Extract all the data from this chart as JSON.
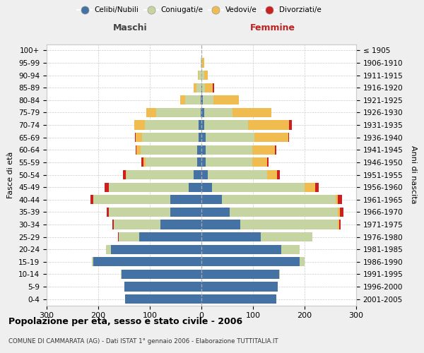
{
  "age_groups": [
    "0-4",
    "5-9",
    "10-14",
    "15-19",
    "20-24",
    "25-29",
    "30-34",
    "35-39",
    "40-44",
    "45-49",
    "50-54",
    "55-59",
    "60-64",
    "65-69",
    "70-74",
    "75-79",
    "80-84",
    "85-89",
    "90-94",
    "95-99",
    "100+"
  ],
  "birth_years": [
    "2001-2005",
    "1996-2000",
    "1991-1995",
    "1986-1990",
    "1981-1985",
    "1976-1980",
    "1971-1975",
    "1966-1970",
    "1961-1965",
    "1956-1960",
    "1951-1955",
    "1946-1950",
    "1941-1945",
    "1936-1940",
    "1931-1935",
    "1926-1930",
    "1921-1925",
    "1916-1920",
    "1911-1915",
    "1906-1910",
    "≤ 1905"
  ],
  "males": {
    "celibi": [
      148,
      150,
      155,
      210,
      175,
      120,
      80,
      60,
      60,
      25,
      15,
      8,
      8,
      5,
      5,
      2,
      1,
      0,
      0,
      0,
      0
    ],
    "coniugati": [
      0,
      0,
      1,
      3,
      10,
      40,
      90,
      120,
      150,
      155,
      130,
      100,
      110,
      110,
      105,
      85,
      30,
      10,
      5,
      2,
      0
    ],
    "vedovi": [
      0,
      0,
      0,
      0,
      0,
      0,
      0,
      0,
      0,
      0,
      2,
      5,
      8,
      12,
      20,
      20,
      10,
      5,
      2,
      0,
      0
    ],
    "divorziati": [
      0,
      0,
      0,
      0,
      0,
      2,
      3,
      3,
      5,
      8,
      5,
      3,
      2,
      2,
      0,
      0,
      0,
      0,
      0,
      0,
      0
    ]
  },
  "females": {
    "nubili": [
      145,
      148,
      150,
      190,
      155,
      115,
      75,
      55,
      40,
      20,
      12,
      8,
      8,
      8,
      5,
      5,
      3,
      2,
      0,
      0,
      0
    ],
    "coniugate": [
      0,
      0,
      2,
      10,
      35,
      100,
      190,
      210,
      220,
      180,
      115,
      90,
      90,
      95,
      85,
      55,
      20,
      5,
      5,
      2,
      0
    ],
    "vedove": [
      0,
      0,
      0,
      0,
      0,
      0,
      2,
      3,
      5,
      20,
      20,
      30,
      45,
      65,
      80,
      75,
      50,
      15,
      8,
      3,
      0
    ],
    "divorziate": [
      0,
      0,
      0,
      0,
      0,
      0,
      3,
      8,
      8,
      8,
      5,
      2,
      2,
      2,
      5,
      0,
      0,
      2,
      0,
      0,
      0
    ]
  },
  "colors": {
    "celibi": "#4472a4",
    "coniugati": "#c5d4a0",
    "vedovi": "#f0bc50",
    "divorziati": "#cc2020"
  },
  "xlim": [
    -300,
    300
  ],
  "xticks": [
    -300,
    -200,
    -100,
    0,
    100,
    200,
    300
  ],
  "xticklabels": [
    "300",
    "200",
    "100",
    "0",
    "100",
    "200",
    "300"
  ],
  "title": "Popolazione per età, sesso e stato civile - 2006",
  "subtitle": "COMUNE DI CAMMARATA (AG) - Dati ISTAT 1° gennaio 2006 - Elaborazione TUTTITALIA.IT",
  "ylabel_left": "Fasce di età",
  "ylabel_right": "Anni di nascita",
  "label_maschi": "Maschi",
  "label_femmine": "Femmine",
  "legend_labels": [
    "Celibi/Nubili",
    "Coniugati/e",
    "Vedovi/e",
    "Divorziati/e"
  ],
  "bg_color": "#efefef",
  "plot_bg_color": "#ffffff",
  "bar_height": 0.75
}
